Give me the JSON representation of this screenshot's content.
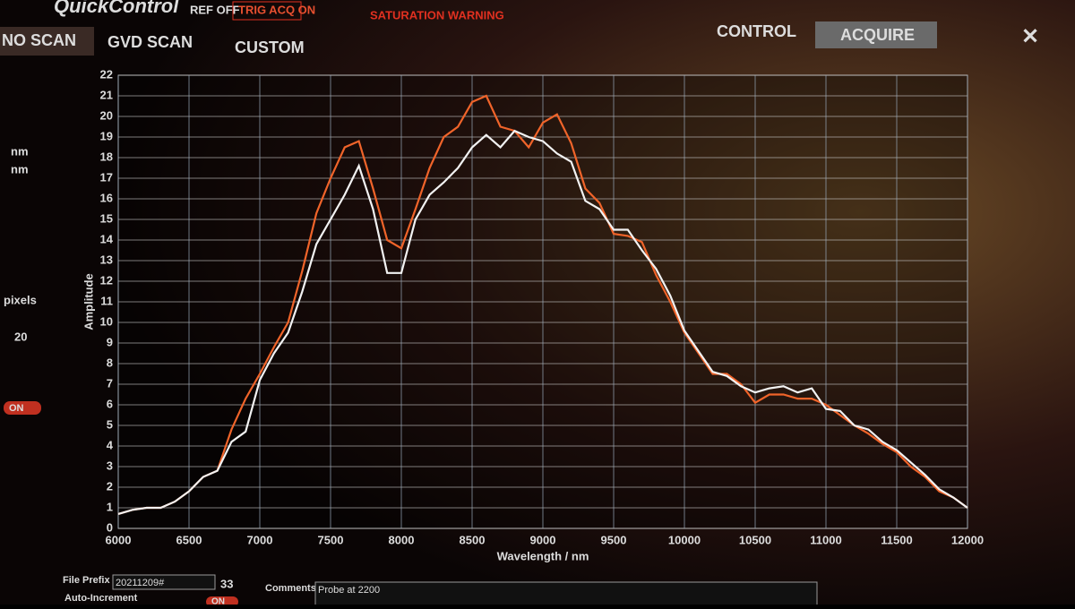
{
  "ui": {
    "logo": "QuickControl",
    "ref": "REF OFF",
    "trig": "TRIG ACQ ON",
    "warning": "SATURATION WARNING",
    "tabs": [
      "NO SCAN",
      "GVD SCAN",
      "CUSTOM"
    ],
    "control": "CONTROL",
    "acquire": "ACQUIRE",
    "side": {
      "unit1": "nm",
      "unit2": "nm",
      "pixels": "pixels",
      "count": "20",
      "toggle": "ON"
    },
    "bottom": {
      "prefix_label": "File Prefix",
      "prefix": "20211209#",
      "number": "33",
      "auto": "Auto-Increment",
      "auto_toggle": "ON",
      "comments_label": "Comments",
      "comments": "Probe at 2200"
    }
  },
  "chart_data": {
    "type": "line",
    "x_label": "Wavelength / nm",
    "y_label": "Amplitude",
    "x": [
      6000,
      6100,
      6200,
      6300,
      6400,
      6500,
      6600,
      6700,
      6800,
      6900,
      7000,
      7100,
      7200,
      7300,
      7400,
      7500,
      7600,
      7700,
      7800,
      7900,
      8000,
      8100,
      8200,
      8300,
      8400,
      8500,
      8600,
      8700,
      8800,
      8900,
      9000,
      9100,
      9200,
      9300,
      9400,
      9500,
      9600,
      9700,
      9800,
      9900,
      10000,
      10100,
      10200,
      10300,
      10400,
      10500,
      10600,
      10700,
      10800,
      10900,
      11000,
      11100,
      11200,
      11300,
      11400,
      11500,
      11600,
      11700,
      11800,
      11900,
      12000
    ],
    "series": [
      {
        "color": "#f0642a",
        "values": [
          0.7,
          0.9,
          1.0,
          1.0,
          1.3,
          1.8,
          2.5,
          2.8,
          4.8,
          6.3,
          7.5,
          8.8,
          10.0,
          12.5,
          15.3,
          17.0,
          18.5,
          18.8,
          16.5,
          14.0,
          13.6,
          15.5,
          17.5,
          19.0,
          19.5,
          20.7,
          21.0,
          19.5,
          19.3,
          18.5,
          19.7,
          20.1,
          18.7,
          16.5,
          15.8,
          14.3,
          14.2,
          13.9,
          12.3,
          11.0,
          9.5,
          8.5,
          7.5,
          7.5,
          7.0,
          6.1,
          6.5,
          6.5,
          6.3,
          6.3,
          6.0,
          5.5,
          5.0,
          4.6,
          4.1,
          3.7,
          3.0,
          2.5,
          1.8,
          1.5,
          1.0
        ]
      },
      {
        "color": "#f2f2f2",
        "values": [
          0.7,
          0.9,
          1.0,
          1.0,
          1.3,
          1.8,
          2.5,
          2.8,
          4.2,
          4.7,
          7.2,
          8.5,
          9.5,
          11.5,
          13.8,
          15.0,
          16.2,
          17.6,
          15.5,
          12.4,
          12.4,
          15.0,
          16.2,
          16.8,
          17.5,
          18.5,
          19.1,
          18.5,
          19.3,
          19.0,
          18.8,
          18.2,
          17.8,
          15.9,
          15.5,
          14.5,
          14.5,
          13.5,
          12.6,
          11.3,
          9.6,
          8.6,
          7.6,
          7.4,
          6.9,
          6.6,
          6.8,
          6.9,
          6.6,
          6.8,
          5.8,
          5.7,
          5.0,
          4.8,
          4.2,
          3.8,
          3.2,
          2.6,
          1.9,
          1.5,
          1.0
        ]
      }
    ],
    "xlim": [
      6000,
      12000
    ],
    "xticks": [
      6000,
      6500,
      7000,
      7500,
      8000,
      8500,
      9000,
      9500,
      10000,
      10500,
      11000,
      11500,
      12000
    ],
    "ylim": [
      0,
      22
    ],
    "yticks": [
      0,
      1,
      2,
      3,
      4,
      5,
      6,
      7,
      8,
      9,
      10,
      11,
      12,
      13,
      14,
      15,
      16,
      17,
      18,
      19,
      20,
      21,
      22
    ],
    "grid": true
  }
}
